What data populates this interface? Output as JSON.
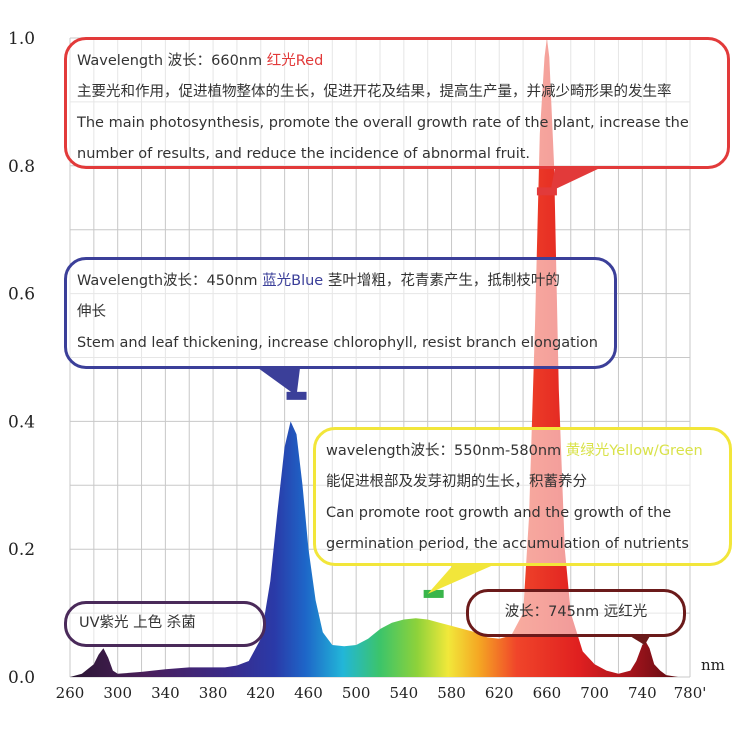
{
  "chart_data": {
    "type": "area",
    "title": "",
    "xlabel": "nm",
    "ylabel": "",
    "xlim": [
      260,
      780
    ],
    "ylim": [
      0,
      1.0
    ],
    "x_ticks": [
      "260",
      "300",
      "340",
      "380",
      "420",
      "460",
      "500",
      "540",
      "580",
      "620",
      "660",
      "700",
      "740",
      "780'"
    ],
    "y_ticks": [
      "0.0",
      "0.2",
      "0.4",
      "0.6",
      "0.8",
      "1.0"
    ],
    "grid": true,
    "series": [
      {
        "x": [
          260,
          270,
          280,
          284,
          288,
          292,
          296,
          300,
          320,
          340,
          360,
          380,
          390,
          400,
          410,
          420,
          428,
          434,
          440,
          445,
          450,
          455,
          460,
          466,
          472,
          480,
          490,
          500,
          510,
          520,
          530,
          540,
          550,
          560,
          570,
          580,
          590,
          600,
          610,
          620,
          630,
          640,
          645,
          650,
          654,
          658,
          660,
          662,
          666,
          670,
          675,
          680,
          690,
          700,
          710,
          720,
          730,
          735,
          740,
          743,
          746,
          750,
          755,
          760,
          770
        ],
        "values": [
          0,
          0.005,
          0.02,
          0.035,
          0.045,
          0.03,
          0.01,
          0.005,
          0.008,
          0.012,
          0.015,
          0.015,
          0.015,
          0.018,
          0.025,
          0.06,
          0.15,
          0.26,
          0.36,
          0.4,
          0.38,
          0.3,
          0.2,
          0.12,
          0.07,
          0.05,
          0.048,
          0.05,
          0.06,
          0.075,
          0.085,
          0.09,
          0.092,
          0.09,
          0.085,
          0.08,
          0.075,
          0.07,
          0.062,
          0.06,
          0.065,
          0.1,
          0.25,
          0.55,
          0.85,
          0.97,
          1.0,
          0.97,
          0.8,
          0.45,
          0.2,
          0.1,
          0.04,
          0.02,
          0.01,
          0.005,
          0.01,
          0.025,
          0.05,
          0.055,
          0.045,
          0.02,
          0.01,
          0.003,
          0
        ]
      }
    ],
    "annotations": [
      {
        "wavelength": 660,
        "color": "#e23a3a"
      },
      {
        "wavelength": 450,
        "color": "#3b3f99"
      },
      {
        "wavelength": 565,
        "color": "#39b54a"
      }
    ]
  },
  "callouts": {
    "red": {
      "label_prefix": "Wavelength 波长：660nm ",
      "label_color_text": "红光Red",
      "line_cn": "主要光和作用，促进植物整体的生长，促进开花及结果，提高生产量，并减少畸形果的发生率",
      "line_en_1": "The main photosynthesis, promote the overall growth rate of the plant, increase the",
      "line_en_2": "number of results, and reduce the incidence of abnormal fruit.",
      "border": "#e23a3a"
    },
    "blue": {
      "label_prefix": "Wavelength波长：450nm  ",
      "label_color_text": "蓝光Blue",
      "label_suffix": "  茎叶增粗，花青素产生，抵制枝叶的",
      "line_cn": "伸长",
      "line_en": "Stem and leaf thickening, increase chlorophyll, resist branch elongation",
      "border": "#3b3f99"
    },
    "yellow": {
      "label_prefix": "wavelength波长：550nm-580nm ",
      "label_color_text": "黄绿光Yellow/Green",
      "line_cn": "能促进根部及发芽初期的生长，积蓄养分",
      "line_en_1": "Can promote root growth and the growth of the",
      "line_en_2": "germination period, the accumulation of nutrients",
      "border": "#f2e63a"
    },
    "uv": {
      "text": "UV紫光 上色 杀菌",
      "border": "#4a2a5a"
    },
    "far_red": {
      "text": "波长：745nm 远红光",
      "border": "#6b1a1a"
    }
  }
}
